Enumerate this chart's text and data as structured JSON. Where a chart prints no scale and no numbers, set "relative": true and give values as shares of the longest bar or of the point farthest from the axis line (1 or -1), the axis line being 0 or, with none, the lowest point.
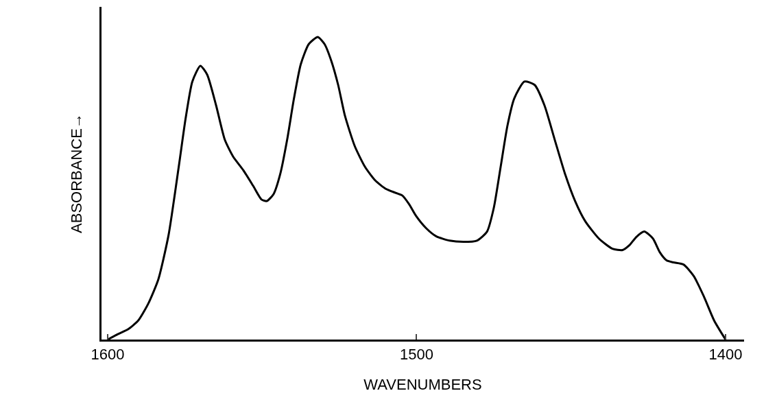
{
  "chart_data": {
    "type": "line",
    "xlabel": "WAVENUMBERS",
    "ylabel": "ABSORBANCE→",
    "relative": true,
    "color": "#000000",
    "marker": "none",
    "line_style": "solid",
    "xlim": [
      1602,
      1394
    ],
    "xticks": [
      1600,
      1500,
      1400
    ],
    "x": [
      1600,
      1596.7,
      1593.4,
      1590.1,
      1586.8,
      1583.6,
      1580.3,
      1577.0,
      1574.8,
      1572.6,
      1570.0,
      1567.8,
      1564.9,
      1562.1,
      1559.4,
      1556.1,
      1552.9,
      1550.2,
      1548.5,
      1546.3,
      1544.1,
      1541.9,
      1539.7,
      1537.5,
      1534.9,
      1532.0,
      1529.8,
      1527.6,
      1525.4,
      1523.2,
      1520.0,
      1516.7,
      1513.4,
      1510.1,
      1506.8,
      1504.6,
      1502.4,
      1500.2,
      1496.9,
      1493.6,
      1489.3,
      1484.9,
      1480.5,
      1477.2,
      1475.0,
      1472.8,
      1470.6,
      1468.4,
      1465.1,
      1461.8,
      1458.6,
      1455.3,
      1452.0,
      1448.7,
      1445.4,
      1441.0,
      1436.6,
      1433.3,
      1431.1,
      1428.9,
      1426.3,
      1423.5,
      1421.3,
      1419.1,
      1416.9,
      1413.6,
      1410.3,
      1407.0,
      1403.7,
      1400
    ],
    "values": [
      0,
      0.018,
      0.034,
      0.063,
      0.12,
      0.199,
      0.345,
      0.571,
      0.729,
      0.853,
      0.905,
      0.876,
      0.774,
      0.661,
      0.605,
      0.56,
      0.508,
      0.463,
      0.458,
      0.481,
      0.549,
      0.661,
      0.797,
      0.91,
      0.977,
      1,
      0.977,
      0.921,
      0.842,
      0.74,
      0.639,
      0.571,
      0.526,
      0.499,
      0.485,
      0.476,
      0.447,
      0.409,
      0.368,
      0.341,
      0.327,
      0.323,
      0.327,
      0.357,
      0.436,
      0.571,
      0.707,
      0.797,
      0.853,
      0.842,
      0.774,
      0.661,
      0.549,
      0.458,
      0.391,
      0.334,
      0.3,
      0.296,
      0.312,
      0.339,
      0.357,
      0.334,
      0.289,
      0.262,
      0.255,
      0.248,
      0.21,
      0.142,
      0.063,
      0
    ]
  }
}
